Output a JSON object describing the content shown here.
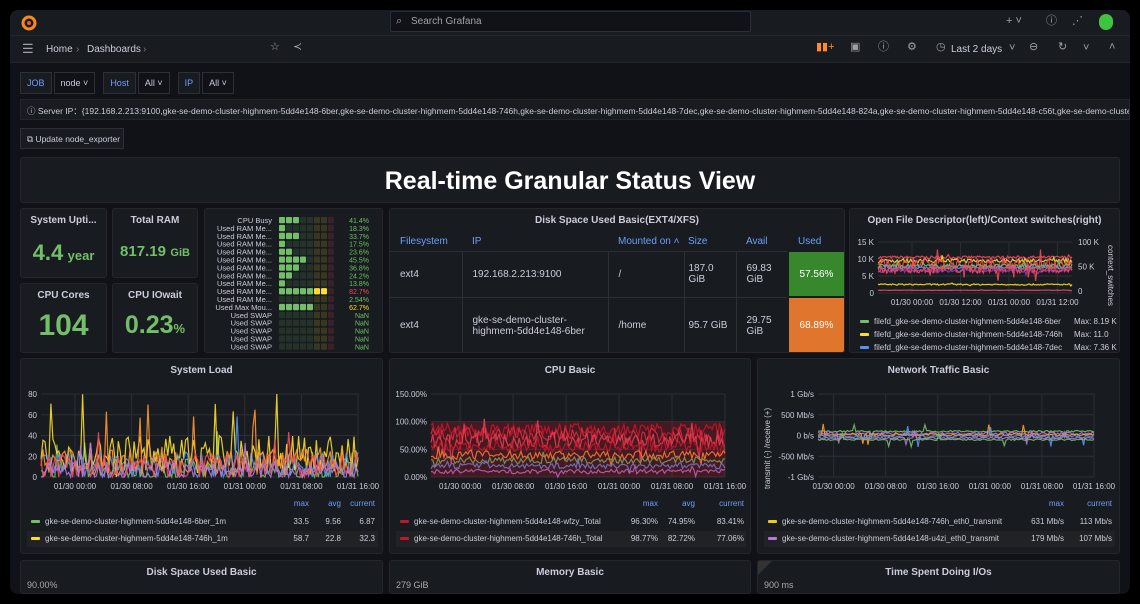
{
  "topbar": {
    "search_placeholder": "Search Grafana",
    "icons": [
      "grafana-logo-icon",
      "plus-icon",
      "help-icon",
      "news-icon",
      "avatar"
    ]
  },
  "navbar": {
    "breadcrumb": [
      "Home",
      "Dashboards"
    ],
    "time_range": "Last 2 days"
  },
  "variables": [
    {
      "label": "JOB",
      "value": "node"
    },
    {
      "label": "Host",
      "value": "All"
    },
    {
      "label": "IP",
      "value": "All"
    }
  ],
  "annotation": {
    "text": "Server IP：{192.168.2.213:9100,gke-se-demo-cluster-highmem-5dd4e148-6ber,gke-se-demo-cluster-highmem-5dd4e148-746h,gke-se-demo-cluster-highmem-5dd4e148-7dec,gke-se-demo-cluster-highmem-5dd4e148-824a,gke-se-demo-cluster-highmem-5dd4e148-c56t,gke-se-demo-cluster-highmem"
  },
  "update_button": "Update node_exporter",
  "dashboard_title": "Real-time Granular Status View",
  "stats": {
    "uptime": {
      "title": "System Upti...",
      "value": "4.4",
      "unit": "year"
    },
    "ram": {
      "title": "Total RAM",
      "value": "817.19",
      "unit": "GiB"
    },
    "cores": {
      "title": "CPU Cores",
      "value": "104"
    },
    "iowait": {
      "title": "CPU IOwait",
      "value": "0.23",
      "unit": "%"
    }
  },
  "bargauge": {
    "rows": [
      {
        "label": "CPU Busy",
        "value": "41.4%",
        "level": 0.414
      },
      {
        "label": "Used RAM Me...",
        "value": "18.3%",
        "level": 0.183
      },
      {
        "label": "Used RAM Me...",
        "value": "33.7%",
        "level": 0.337
      },
      {
        "label": "Used RAM Me...",
        "value": "17.5%",
        "level": 0.175
      },
      {
        "label": "Used RAM Me...",
        "value": "23.6%",
        "level": 0.236
      },
      {
        "label": "Used RAM Me...",
        "value": "45.5%",
        "level": 0.455
      },
      {
        "label": "Used RAM Me...",
        "value": "36.8%",
        "level": 0.368
      },
      {
        "label": "Used RAM Me...",
        "value": "24.2%",
        "level": 0.242
      },
      {
        "label": "Used RAM Me...",
        "value": "13.8%",
        "level": 0.138
      },
      {
        "label": "Used RAM Me...",
        "value": "82.7%",
        "level": 0.827,
        "color": "#f2495c"
      },
      {
        "label": "Used RAM Me...",
        "value": "2.54%",
        "level": 0.0254
      },
      {
        "label": "Used Max Mou...",
        "value": "62.7%",
        "level": 0.627,
        "color": "#fade2a"
      },
      {
        "label": "Used SWAP",
        "value": "NaN",
        "level": 0
      },
      {
        "label": "Used SWAP",
        "value": "NaN",
        "level": 0
      },
      {
        "label": "Used SWAP",
        "value": "NaN",
        "level": 0
      },
      {
        "label": "Used SWAP",
        "value": "NaN",
        "level": 0
      },
      {
        "label": "Used SWAP",
        "value": "NaN",
        "level": 0
      }
    ]
  },
  "disk": {
    "title": "Disk Space Used Basic(EXT4/XFS)",
    "columns": [
      "Filesystem",
      "IP",
      "Mounted on",
      "Size",
      "Avail",
      "Used"
    ],
    "rows": [
      {
        "fs": "ext4",
        "ip": "192.168.2.213:9100",
        "mount": "/",
        "size": "187.0 GiB",
        "avail": "69.83 GiB",
        "used": "57.56%",
        "color": "#37872d"
      },
      {
        "fs": "ext4",
        "ip": "gke-se-demo-cluster-highmem-5dd4e148-6ber",
        "mount": "/home",
        "size": "95.7 GiB",
        "avail": "29.75 GiB",
        "used": "68.89%",
        "color": "#e0752d"
      }
    ]
  },
  "chart_data": [
    {
      "id": "fd",
      "type": "line",
      "title": "Open File Descriptor(left)/Context switches(right)",
      "y_ticks": [
        "15 K",
        "10 K",
        "5 K",
        "0"
      ],
      "ylim": [
        0,
        15000
      ],
      "y2_ticks": [
        "100 K",
        "50 K",
        "0"
      ],
      "y2label": "context_switches",
      "x_ticks": [
        "01/30 00:00",
        "01/30 12:00",
        "01/31 00:00",
        "01/31 12:00"
      ],
      "legend": [
        {
          "name": "filefd_gke-se-demo-cluster-highmem-5dd4e148-6ber",
          "stat": "Max: 8.19 K",
          "color": "#73bf69"
        },
        {
          "name": "filefd_gke-se-demo-cluster-highmem-5dd4e148-746h",
          "stat": "Max: 11.0",
          "color": "#fade2a"
        },
        {
          "name": "filefd_gke-se-demo-cluster-highmem-5dd4e148-7dec",
          "stat": "Max: 7.36 K",
          "color": "#5794f2"
        }
      ],
      "series": [
        {
          "color": "#f2495c",
          "level": 10500,
          "amp": 400
        },
        {
          "color": "#fade2a",
          "level": 9500,
          "amp": 600
        },
        {
          "color": "#f2495c",
          "level": 8500,
          "amp": 1500
        },
        {
          "color": "#73bf69",
          "level": 8000,
          "amp": 500
        },
        {
          "color": "#5794f2",
          "level": 7400,
          "amp": 300
        },
        {
          "color": "#8f3bb8",
          "level": 6500,
          "amp": 500
        },
        {
          "color": "#f2495c",
          "level": 7000,
          "amp": 1200
        },
        {
          "color": "#fade2a",
          "level": 2500,
          "amp": 200
        },
        {
          "color": "#f2495c",
          "level": 800,
          "amp": 50
        }
      ]
    },
    {
      "id": "load",
      "type": "line",
      "title": "System Load",
      "y_ticks": [
        "80",
        "60",
        "40",
        "20",
        "0"
      ],
      "ylim": [
        0,
        80
      ],
      "x_ticks": [
        "01/30 00:00",
        "01/30 08:00",
        "01/30 16:00",
        "01/31 00:00",
        "01/31 08:00",
        "01/31 16:00"
      ],
      "legend_header": [
        "max",
        "avg",
        "current"
      ],
      "legend": [
        {
          "name": "gke-se-demo-cluster-highmem-5dd4e148-6ber_1m",
          "values": [
            "33.5",
            "9.56",
            "6.87"
          ],
          "color": "#73bf69"
        },
        {
          "name": "gke-se-demo-cluster-highmem-5dd4e148-746h_1m",
          "values": [
            "58.7",
            "22.8",
            "32.3"
          ],
          "color": "#fade2a"
        }
      ],
      "series": [
        {
          "color": "#73bf69",
          "level": 8,
          "amp": 10
        },
        {
          "color": "#fade2a",
          "level": 22,
          "amp": 18
        },
        {
          "color": "#5794f2",
          "level": 12,
          "amp": 12
        },
        {
          "color": "#ff9830",
          "level": 15,
          "amp": 14
        },
        {
          "color": "#f2495c",
          "level": 10,
          "amp": 12
        },
        {
          "color": "#b877d9",
          "level": 6,
          "amp": 8
        }
      ]
    },
    {
      "id": "cpu",
      "type": "line",
      "title": "CPU Basic",
      "y_ticks": [
        "150.00%",
        "100.00%",
        "50.00%",
        "0.00%"
      ],
      "ylim": [
        0,
        150
      ],
      "x_ticks": [
        "01/30 00:00",
        "01/30 08:00",
        "01/30 16:00",
        "01/31 00:00",
        "01/31 08:00",
        "01/31 16:00"
      ],
      "legend_header": [
        "max",
        "avg",
        "current"
      ],
      "legend": [
        {
          "name": "gke-se-demo-cluster-highmem-5dd4e148-wfzy_Total",
          "values": [
            "96.30%",
            "74.95%",
            "83.41%"
          ],
          "color": "#c4162a"
        },
        {
          "name": "gke-se-demo-cluster-highmem-5dd4e148-746h_Total",
          "values": [
            "98.77%",
            "82.72%",
            "77.06%"
          ],
          "color": "#c4162a"
        }
      ],
      "series": [
        {
          "color": "#c4162a",
          "level": 85,
          "amp": 12
        },
        {
          "color": "#e02f44",
          "level": 75,
          "amp": 15
        },
        {
          "color": "#f2495c",
          "level": 65,
          "amp": 15
        },
        {
          "color": "#c4162a",
          "level": 55,
          "amp": 10
        },
        {
          "color": "#ff9830",
          "level": 40,
          "amp": 8
        },
        {
          "color": "#73bf69",
          "level": 30,
          "amp": 6
        },
        {
          "color": "#5794f2",
          "level": 20,
          "amp": 5
        },
        {
          "color": "#b877d9",
          "level": 10,
          "amp": 4
        }
      ]
    },
    {
      "id": "net",
      "type": "line",
      "title": "Network Traffic Basic",
      "y_ticks": [
        "1 Gb/s",
        "500 Mb/s",
        "0 b/s",
        "-500 Mb/s",
        "-1 Gb/s"
      ],
      "ylim": [
        -1000,
        1000
      ],
      "ylabel": "transmit (-) /receive (+)",
      "x_ticks": [
        "01/30 00:00",
        "01/30 08:00",
        "01/30 16:00",
        "01/31 00:00",
        "01/31 08:00",
        "01/31 16:00"
      ],
      "legend_header": [
        "max",
        "current"
      ],
      "legend": [
        {
          "name": "gke-se-demo-cluster-highmem-5dd4e148-746h_eth0_transmit",
          "values": [
            "631 Mb/s",
            "113 Mb/s"
          ],
          "color": "#f2cc0c"
        },
        {
          "name": "gke-se-demo-cluster-highmem-5dd4e148-u4zi_eth0_transmit",
          "values": [
            "179 Mb/s",
            "107 Mb/s"
          ],
          "color": "#b877d9"
        }
      ],
      "series": [
        {
          "color": "#73bf69",
          "level": 100,
          "amp": 20
        },
        {
          "color": "#b877d9",
          "level": 50,
          "amp": 30
        },
        {
          "color": "#ff9830",
          "level": 20,
          "amp": 30
        },
        {
          "color": "#5794f2",
          "level": -20,
          "amp": 30
        },
        {
          "color": "#b877d9",
          "level": -60,
          "amp": 20
        },
        {
          "color": "#73bf69",
          "level": -100,
          "amp": 20
        }
      ]
    }
  ],
  "bottom_panels": [
    {
      "title": "Disk Space Used Basic",
      "first_tick": "90.00%"
    },
    {
      "title": "Memory Basic",
      "first_tick": "279 GiB"
    },
    {
      "title": "Time Spent Doing I/Os",
      "first_tick": "900 ms"
    }
  ]
}
